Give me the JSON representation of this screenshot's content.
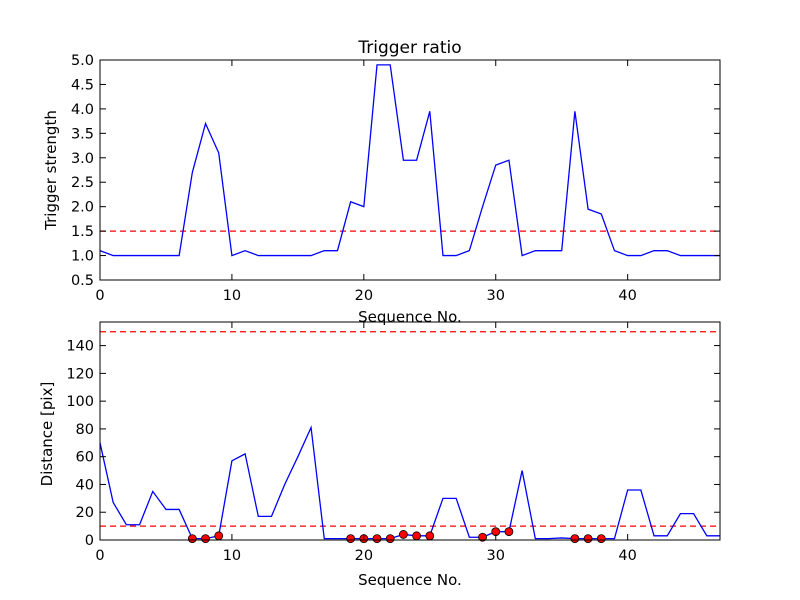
{
  "chart_data": [
    {
      "type": "line",
      "title": "Trigger ratio",
      "xlabel": "Sequence No.",
      "ylabel": "Trigger strength",
      "xlim": [
        0,
        47
      ],
      "ylim": [
        0.5,
        5.0
      ],
      "xticks": [
        0,
        10,
        20,
        30,
        40
      ],
      "xtick_labels": [
        "0",
        "10",
        "20",
        "30",
        "40"
      ],
      "yticks": [
        0.5,
        1.0,
        1.5,
        2.0,
        2.5,
        3.0,
        3.5,
        4.0,
        4.5,
        5.0
      ],
      "ytick_labels": [
        "0.5",
        "1.0",
        "1.5",
        "2.0",
        "2.5",
        "3.0",
        "3.5",
        "4.0",
        "4.5",
        "5.0"
      ],
      "grid": false,
      "series": [
        {
          "color": "#0000ff",
          "x": [
            0,
            1,
            2,
            3,
            4,
            5,
            6,
            7,
            8,
            9,
            10,
            11,
            12,
            13,
            14,
            15,
            16,
            17,
            18,
            19,
            20,
            21,
            22,
            23,
            24,
            25,
            26,
            27,
            28,
            29,
            30,
            31,
            32,
            33,
            34,
            35,
            36,
            37,
            38,
            39,
            40,
            41,
            42,
            43,
            44,
            45,
            46,
            47
          ],
          "y": [
            1.1,
            1.0,
            1.0,
            1.0,
            1.0,
            1.0,
            1.0,
            2.7,
            3.7,
            3.1,
            1.0,
            1.1,
            1.0,
            1.0,
            1.0,
            1.0,
            1.0,
            1.1,
            1.1,
            2.1,
            2.0,
            4.9,
            4.9,
            2.95,
            2.95,
            3.95,
            1.0,
            1.0,
            1.1,
            2.0,
            2.85,
            2.95,
            1.0,
            1.1,
            1.1,
            1.1,
            3.95,
            1.95,
            1.85,
            1.1,
            1.0,
            1.0,
            1.1,
            1.1,
            1.0,
            1.0,
            1.0,
            1.0
          ]
        }
      ],
      "hlines": [
        {
          "y": 1.5,
          "color": "#ff0000",
          "style": "dashed"
        }
      ]
    },
    {
      "type": "line",
      "title": "",
      "xlabel": "Sequence No.",
      "ylabel": "Distance [pix]",
      "xlim": [
        0,
        47
      ],
      "ylim": [
        0,
        157
      ],
      "xticks": [
        0,
        10,
        20,
        30,
        40
      ],
      "xtick_labels": [
        "0",
        "10",
        "20",
        "30",
        "40"
      ],
      "yticks": [
        0,
        20,
        40,
        60,
        80,
        100,
        120,
        140
      ],
      "ytick_labels": [
        "0",
        "20",
        "40",
        "60",
        "80",
        "100",
        "120",
        "140"
      ],
      "grid": false,
      "series": [
        {
          "color": "#0000ff",
          "x": [
            0,
            1,
            2,
            3,
            4,
            5,
            6,
            7,
            8,
            9,
            10,
            11,
            12,
            13,
            14,
            15,
            16,
            17,
            18,
            19,
            20,
            21,
            22,
            23,
            24,
            25,
            26,
            27,
            28,
            29,
            30,
            31,
            32,
            33,
            34,
            35,
            36,
            37,
            38,
            39,
            40,
            41,
            42,
            43,
            44,
            45,
            46,
            47
          ],
          "y": [
            70,
            27,
            11,
            11,
            35,
            22,
            22,
            1,
            1,
            3,
            57,
            62,
            17,
            17,
            40,
            60,
            81,
            1,
            1,
            1,
            1,
            1,
            1,
            4,
            3,
            3,
            30,
            30,
            2,
            2,
            6,
            6,
            50,
            1,
            1,
            1.5,
            1,
            1,
            1,
            1,
            36,
            36,
            3,
            3,
            19,
            19,
            3,
            3
          ]
        }
      ],
      "markers": {
        "color": "#ff0000",
        "x": [
          7,
          8,
          9,
          19,
          20,
          21,
          22,
          23,
          24,
          25,
          29,
          30,
          31,
          36,
          37,
          38
        ],
        "y": [
          1,
          1,
          3,
          1,
          1,
          1,
          1,
          4,
          3,
          3,
          2,
          6,
          6,
          1,
          1,
          1
        ]
      },
      "hlines": [
        {
          "y": 150,
          "color": "#ff0000",
          "style": "dashed"
        },
        {
          "y": 10,
          "color": "#ff0000",
          "style": "dashed"
        }
      ]
    }
  ]
}
